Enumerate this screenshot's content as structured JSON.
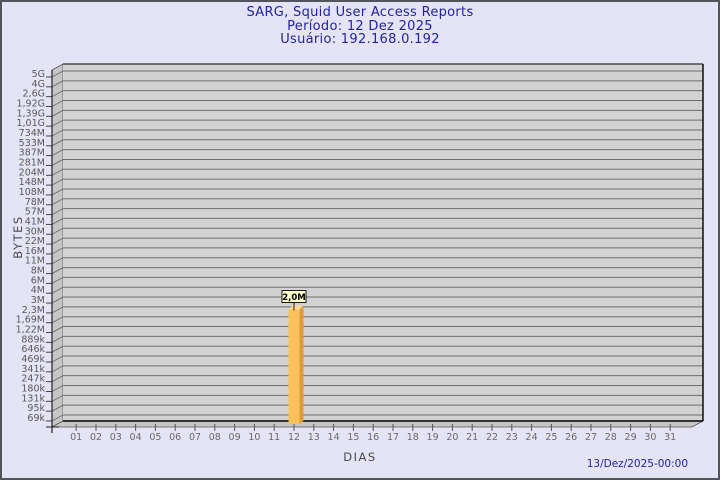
{
  "header": {
    "title": "SARG, Squid User Access Reports",
    "period": "Período: 12 Dez 2025",
    "user": "Usuário: 192.168.0.192"
  },
  "footer": {
    "timestamp": "13/Dez/2025-00:00"
  },
  "chart_data": {
    "type": "bar",
    "title": "SARG, Squid User Access Reports",
    "subtitle": "Período: 12 Dez 2025",
    "user_line": "Usuário: 192.168.0.192",
    "xlabel": "DIAS",
    "ylabel": "BYTES",
    "x_categories": [
      "01",
      "02",
      "03",
      "04",
      "05",
      "06",
      "07",
      "08",
      "09",
      "10",
      "11",
      "12",
      "13",
      "14",
      "15",
      "16",
      "17",
      "18",
      "19",
      "20",
      "21",
      "22",
      "23",
      "24",
      "25",
      "26",
      "27",
      "28",
      "29",
      "30",
      "31"
    ],
    "y_scale": "log",
    "y_top_value": 5000000000,
    "y_bottom_value": 69000,
    "y_tick_labels": [
      "5G",
      "4G",
      "2,6G",
      "1,92G",
      "1,39G",
      "1,01G",
      "734M",
      "533M",
      "387M",
      "281M",
      "204M",
      "148M",
      "108M",
      "78M",
      "57M",
      "41M",
      "30M",
      "22M",
      "16M",
      "11M",
      "8M",
      "6M",
      "4M",
      "3M",
      "2,3M",
      "1,69M",
      "1,22M",
      "889k",
      "646k",
      "469k",
      "341k",
      "247k",
      "180k",
      "131k",
      "95k",
      "69k"
    ],
    "bars": [
      {
        "day": "12",
        "value": 2000000,
        "label": "2,0M"
      }
    ],
    "grid": "on",
    "legend": "none",
    "footer_timestamp": "13/Dez/2025-00:00"
  },
  "colors": {
    "bg": "#e4e4f6",
    "navy": "#2323a6",
    "axis_grey": "#4a4a4a",
    "tick_grey": "#5a5a5a",
    "day_grey": "#6a6a6a",
    "plot_band": "#d2d2d2",
    "grid_line": "#6e6e6e",
    "wall": "#c6c6c6",
    "edge_dark": "#2f2f2f",
    "bar_face": "#fbc25b",
    "bar_side": "#de9b3d",
    "bar_top": "#fdd98f",
    "value_box_bg": "#ffffc8"
  }
}
